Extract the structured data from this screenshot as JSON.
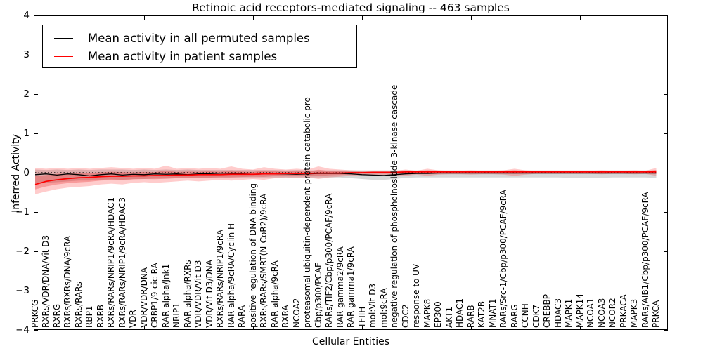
{
  "figure": {
    "title": "Retinoic acid receptors-mediated signaling -- 463 samples",
    "xlabel": "Cellular Entities",
    "ylabel": "Inferred Activity"
  },
  "legend": {
    "entries": [
      {
        "label": "Mean activity in all permuted samples",
        "color": "#000000"
      },
      {
        "label": "Mean activity in patient samples",
        "color": "#ff0000"
      }
    ],
    "position": "upper left"
  },
  "axes": {
    "ytick_labels": [
      "4",
      "3",
      "2",
      "1",
      "0",
      "−1",
      "−2",
      "−3",
      "−4"
    ],
    "ytick_values": [
      4,
      3,
      2,
      1,
      0,
      -1,
      -2,
      -3,
      -4
    ],
    "xtick_interval": 10
  },
  "chart_data": {
    "type": "line",
    "title": "Retinoic acid receptors-mediated signaling -- 463 samples",
    "xlabel": "Cellular Entities",
    "ylabel": "Inferred Activity",
    "ylim": [
      -4,
      4
    ],
    "grid": false,
    "legend_position": "upper left",
    "zero_line": {
      "y": 0,
      "style": "dotted",
      "color": "#000000"
    },
    "categories": [
      "PRKCG",
      "RXRs/VDR/DNA/Vit D3",
      "RXRG",
      "RXRs/RXRs/DNA/9cRA",
      "RXRs/RARs",
      "RBP1",
      "RXRB",
      "RXRs/RARs/NRIP1/9cRA/HDAC1",
      "RXRs/RARs/NRIP1/9cRA/HDAC3",
      "VDR",
      "VDR/VDR/DNA",
      "CRBP1/9-cic-RA",
      "RAR alpha/Jnk1",
      "NRIP1",
      "RAR alpha/RXRs",
      "VDR/VDR/Vit D3",
      "VDR/Vit D3/DNA",
      "RXRs/RARs/NRIP1/9cRA",
      "RAR alpha/9cRA/Cyclin H",
      "RARA",
      "positive regulation of DNA binding",
      "RXRs/RARs/SMRT(N-CoR2)/9cRA",
      "RAR alpha/9cRA",
      "RXRA",
      "NCOA2",
      "proteasomal ubiquitin-dependent protein catabolic pro",
      "Cbp/p300/PCAF",
      "RARs/TIF2/Cbp/p300/PCAF/9cRA",
      "RAR gamma2/9cRA",
      "RAR gamma1/9cRA",
      "TFIIH",
      "mol:Vit D3",
      "mol:9cRA",
      "negative regulation of phosphoinositide 3-kinase cascade",
      "CDC2",
      "response to UV",
      "MAPK8",
      "EP300",
      "AKT1",
      "HDAC1",
      "RARB",
      "KAT2B",
      "MNAT1",
      "RARs/Src-1/Cbp/p300/PCAF/9cRA",
      "RARG",
      "CCNH",
      "CDK7",
      "CREBBP",
      "HDAC3",
      "MAPK1",
      "MAPK14",
      "NCOA1",
      "NCOA3",
      "NCOR2",
      "PRKACA",
      "MAPK3",
      "RARs/AIB1/Cbp/p300/PCAF/9cRA",
      "PRKCA"
    ],
    "series": [
      {
        "name": "Mean activity in all permuted samples",
        "color": "#000000",
        "values": [
          -0.05,
          -0.03,
          -0.06,
          -0.03,
          -0.05,
          -0.08,
          -0.05,
          -0.03,
          -0.06,
          -0.04,
          -0.05,
          -0.03,
          -0.04,
          -0.03,
          -0.05,
          -0.03,
          -0.03,
          -0.04,
          -0.03,
          -0.03,
          -0.04,
          -0.03,
          -0.03,
          -0.03,
          -0.04,
          -0.03,
          -0.02,
          -0.02,
          -0.02,
          -0.03,
          -0.05,
          -0.06,
          -0.07,
          -0.05,
          -0.03,
          -0.02,
          -0.02,
          -0.01,
          -0.01,
          -0.01,
          -0.01,
          -0.01,
          -0.01,
          -0.01,
          -0.01,
          -0.01,
          -0.01,
          -0.01,
          -0.01,
          -0.01,
          -0.01,
          -0.01,
          -0.01,
          -0.01,
          -0.01,
          -0.01,
          -0.01,
          -0.01
        ]
      },
      {
        "name": "Mean activity in patient samples",
        "color": "#ff0000",
        "values": [
          -0.3,
          -0.22,
          -0.18,
          -0.15,
          -0.13,
          -0.12,
          -0.1,
          -0.09,
          -0.09,
          -0.08,
          -0.08,
          -0.07,
          -0.07,
          -0.06,
          -0.06,
          -0.05,
          -0.05,
          -0.05,
          -0.04,
          -0.04,
          -0.04,
          -0.03,
          -0.03,
          -0.02,
          -0.02,
          -0.02,
          -0.01,
          -0.01,
          -0.01,
          0.0,
          0.0,
          0.01,
          0.01,
          0.01,
          0.02,
          0.02,
          0.02,
          0.02,
          0.02,
          0.02,
          0.02,
          0.02,
          0.02,
          0.02,
          0.02,
          0.02,
          0.02,
          0.02,
          0.02,
          0.02,
          0.02,
          0.02,
          0.02,
          0.02,
          0.02,
          0.02,
          0.02,
          0.02
        ]
      }
    ],
    "bands": [
      {
        "name": "permuted-samples-std-band",
        "color": "rgba(130,130,130,0.32)",
        "upper": [
          0.08,
          0.07,
          0.08,
          0.07,
          0.08,
          0.07,
          0.08,
          0.08,
          0.08,
          0.07,
          0.08,
          0.07,
          0.08,
          0.07,
          0.08,
          0.07,
          0.07,
          0.07,
          0.07,
          0.07,
          0.07,
          0.07,
          0.07,
          0.06,
          0.07,
          0.06,
          0.06,
          0.06,
          0.06,
          0.06,
          0.06,
          0.06,
          0.06,
          0.06,
          0.06,
          0.06,
          0.06,
          0.06,
          0.06,
          0.06,
          0.06,
          0.06,
          0.06,
          0.06,
          0.06,
          0.06,
          0.06,
          0.06,
          0.06,
          0.06,
          0.06,
          0.06,
          0.06,
          0.06,
          0.06,
          0.06,
          0.06,
          0.06
        ],
        "lower": [
          -0.3,
          -0.26,
          -0.24,
          -0.22,
          -0.2,
          -0.2,
          -0.18,
          -0.17,
          -0.18,
          -0.16,
          -0.16,
          -0.15,
          -0.15,
          -0.14,
          -0.14,
          -0.13,
          -0.13,
          -0.13,
          -0.12,
          -0.12,
          -0.12,
          -0.12,
          -0.12,
          -0.12,
          -0.12,
          -0.12,
          -0.12,
          -0.12,
          -0.12,
          -0.14,
          -0.16,
          -0.18,
          -0.18,
          -0.16,
          -0.13,
          -0.12,
          -0.12,
          -0.12,
          -0.12,
          -0.12,
          -0.12,
          -0.12,
          -0.12,
          -0.12,
          -0.12,
          -0.12,
          -0.12,
          -0.12,
          -0.12,
          -0.13,
          -0.14,
          -0.14,
          -0.13,
          -0.12,
          -0.12,
          -0.12,
          -0.12,
          -0.13
        ]
      },
      {
        "name": "patient-samples-std-band",
        "color": "rgba(255,0,0,0.20)",
        "upper": [
          0.12,
          0.1,
          0.12,
          0.1,
          0.12,
          0.1,
          0.12,
          0.14,
          0.12,
          0.1,
          0.12,
          0.1,
          0.18,
          0.1,
          0.12,
          0.1,
          0.12,
          0.1,
          0.16,
          0.1,
          0.08,
          0.14,
          0.1,
          0.08,
          0.1,
          0.08,
          0.16,
          0.1,
          0.08,
          0.06,
          0.05,
          0.05,
          0.05,
          0.05,
          0.08,
          0.05,
          0.1,
          0.06,
          0.05,
          0.05,
          0.06,
          0.05,
          0.05,
          0.06,
          0.1,
          0.06,
          0.05,
          0.05,
          0.05,
          0.05,
          0.05,
          0.05,
          0.06,
          0.05,
          0.05,
          0.06,
          0.05,
          0.12
        ],
        "lower": [
          -0.55,
          -0.48,
          -0.42,
          -0.38,
          -0.36,
          -0.34,
          -0.3,
          -0.28,
          -0.3,
          -0.26,
          -0.24,
          -0.26,
          -0.24,
          -0.22,
          -0.2,
          -0.22,
          -0.2,
          -0.18,
          -0.2,
          -0.18,
          -0.16,
          -0.18,
          -0.14,
          -0.12,
          -0.14,
          -0.12,
          -0.16,
          -0.12,
          -0.1,
          -0.08,
          -0.06,
          -0.06,
          -0.06,
          -0.06,
          -0.08,
          -0.05,
          -0.08,
          -0.05,
          -0.04,
          -0.04,
          -0.05,
          -0.04,
          -0.04,
          -0.05,
          -0.08,
          -0.05,
          -0.03,
          -0.03,
          -0.03,
          -0.03,
          -0.03,
          -0.03,
          -0.04,
          -0.03,
          -0.03,
          -0.04,
          -0.03,
          -0.08
        ]
      }
    ]
  }
}
